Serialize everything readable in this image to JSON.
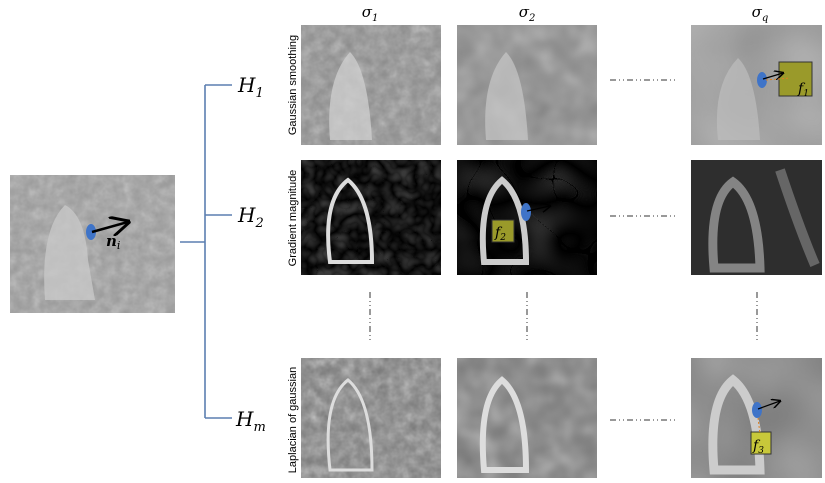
{
  "input": {
    "vector": {
      "symbol": "n",
      "sub": "i"
    }
  },
  "columns": [
    {
      "symbol": "σ",
      "sub": "1"
    },
    {
      "symbol": "σ",
      "sub": "2"
    },
    {
      "symbol": "σ",
      "sub": "q"
    }
  ],
  "rows": [
    {
      "symbol": "H",
      "sub": "1",
      "filter": "Gaussian smoothing"
    },
    {
      "symbol": "H",
      "sub": "2",
      "filter": "Gradient magnitude"
    },
    {
      "symbol": "H",
      "sub": "m",
      "filter": "Laplacian of gaussian"
    }
  ],
  "features": [
    {
      "symbol": "f",
      "sub": "1"
    },
    {
      "symbol": "f",
      "sub": "2"
    },
    {
      "symbol": "f",
      "sub": "3"
    }
  ]
}
